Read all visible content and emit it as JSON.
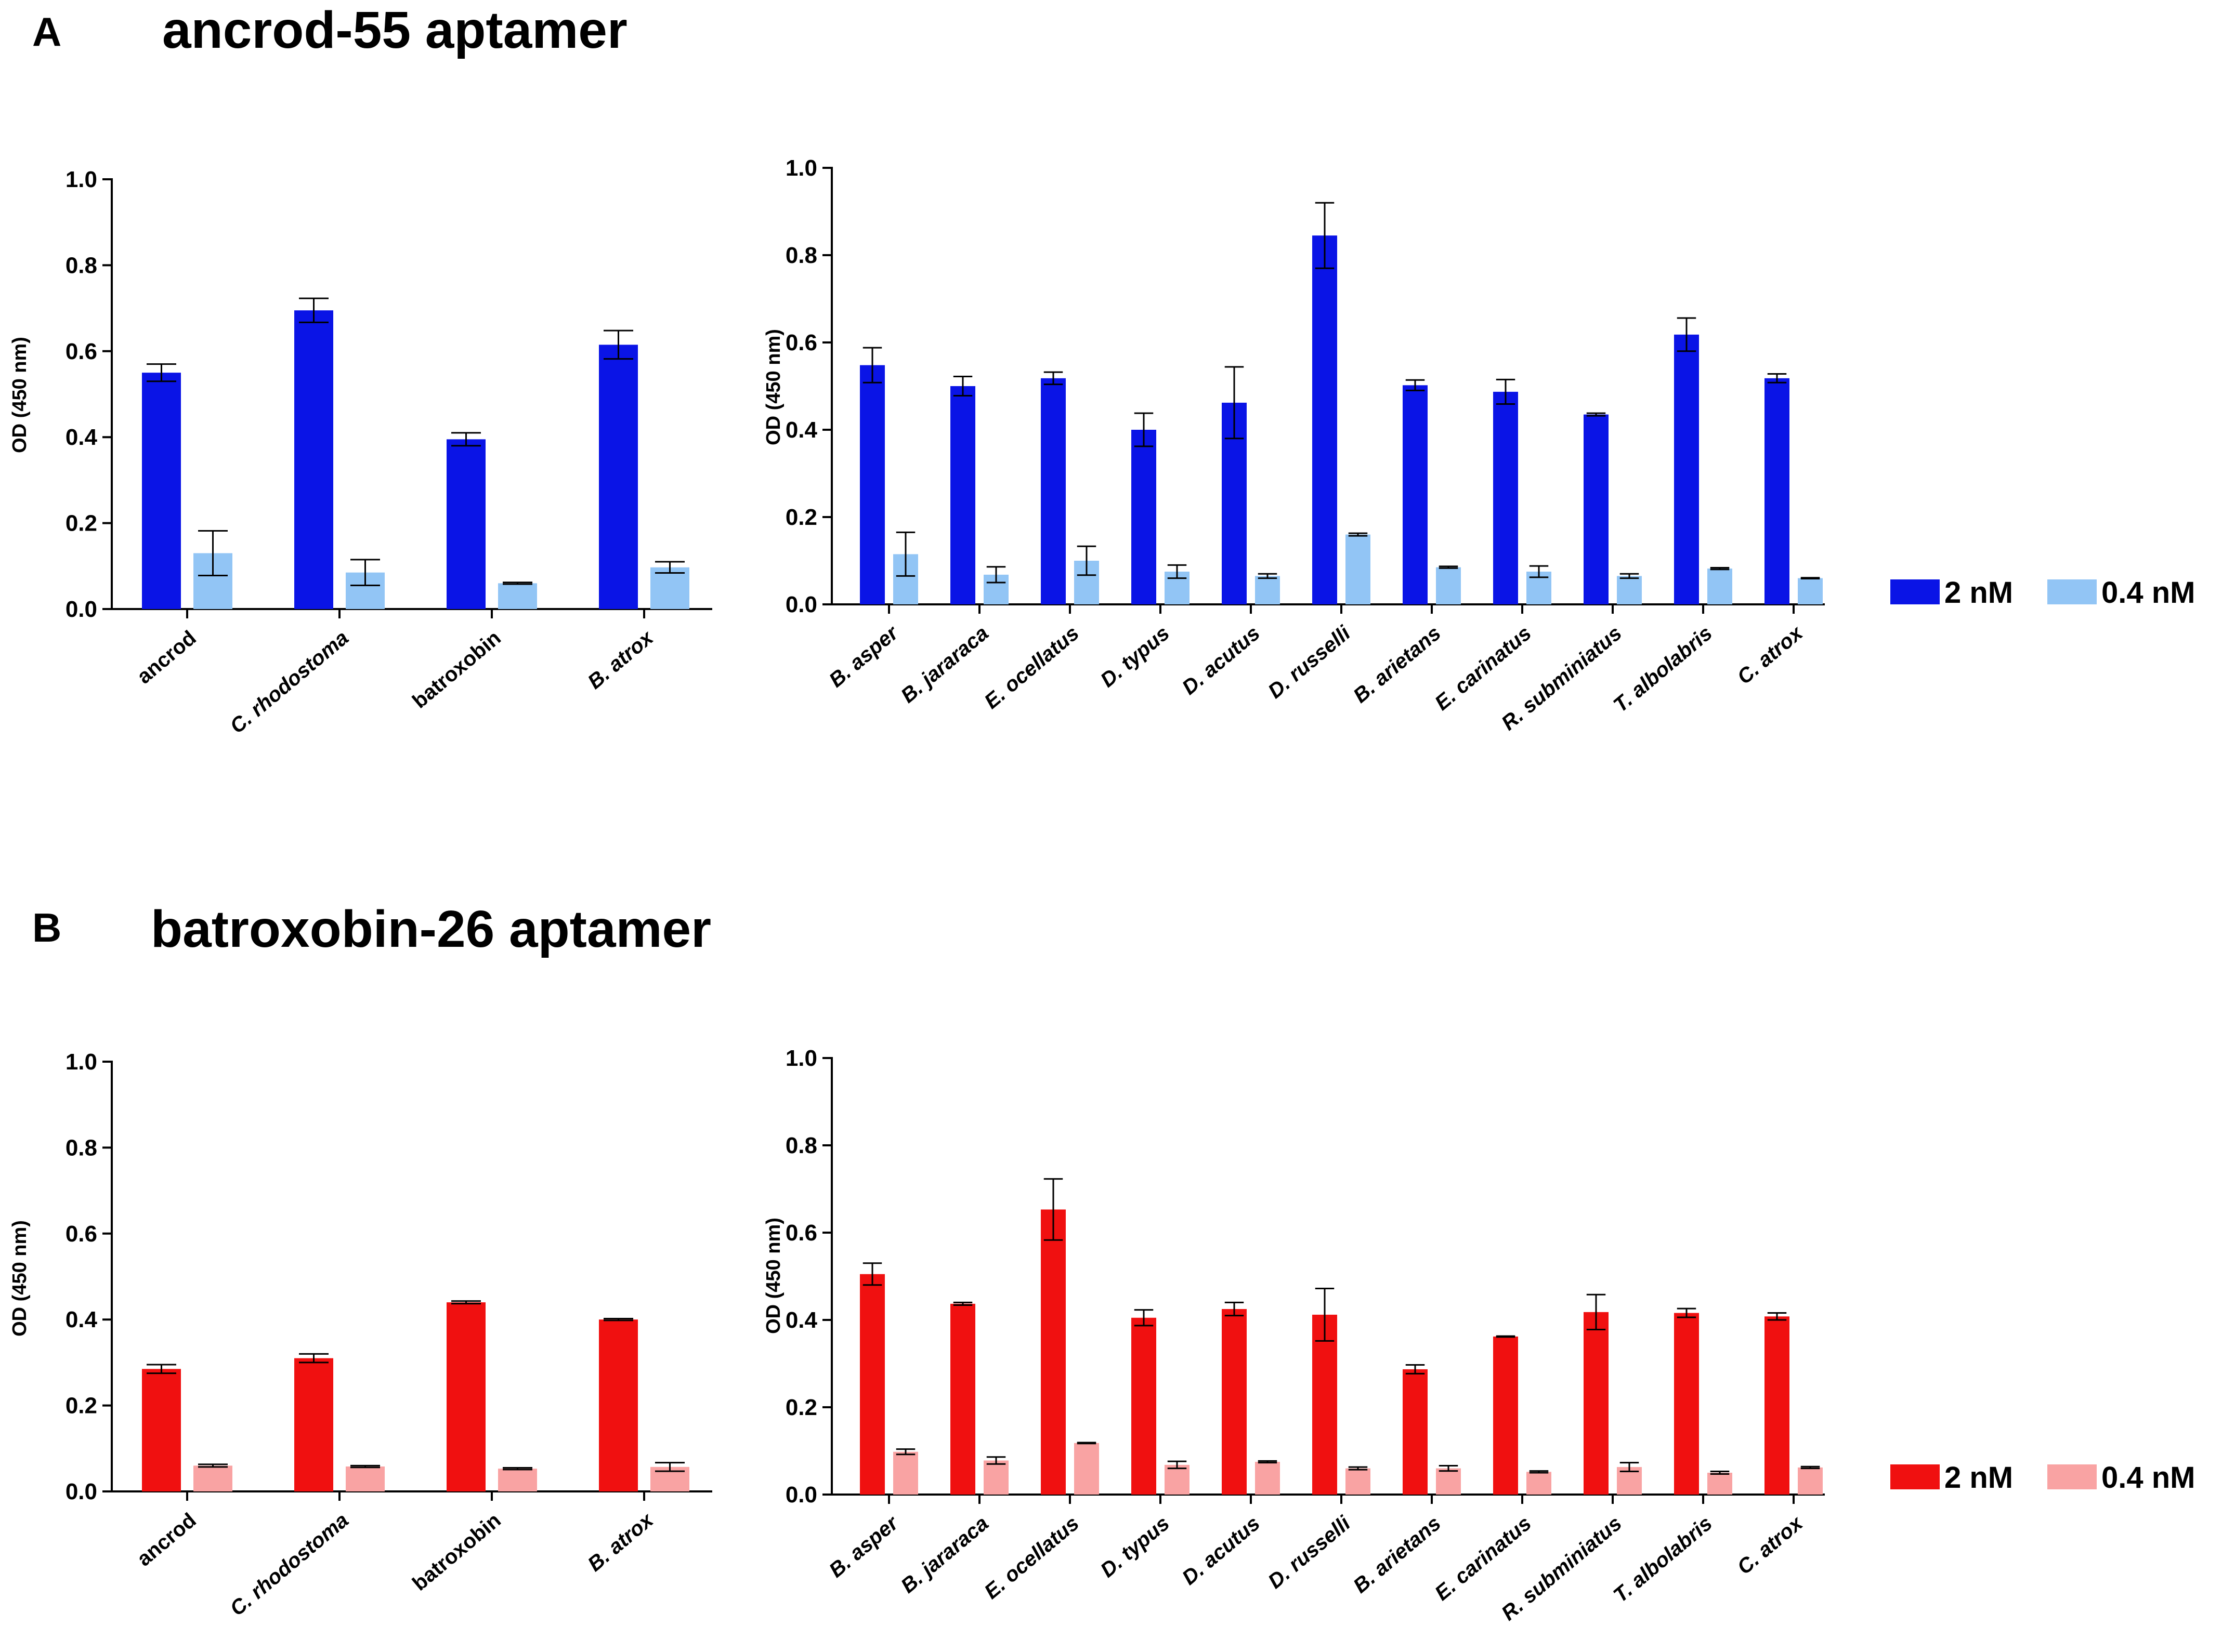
{
  "panels": [
    {
      "letter": "A",
      "title": "ancrod-55 aptamer"
    },
    {
      "letter": "B",
      "title": "batroxobin-26 aptamer"
    }
  ],
  "legends": [
    {
      "items": [
        {
          "label": "2 nM",
          "color": "#0a14e6"
        },
        {
          "label": "0.4 nM",
          "color": "#92c5f5"
        }
      ]
    },
    {
      "items": [
        {
          "label": "2 nM",
          "color": "#f01010"
        },
        {
          "label": "0.4 nM",
          "color": "#f9a3a3"
        }
      ]
    }
  ],
  "chart_data": [
    {
      "type": "bar",
      "panel": "A",
      "ylabel": "OD (450 nm)",
      "ylim": [
        0,
        1.0
      ],
      "yticks": [
        "0.0",
        "0.2",
        "0.4",
        "0.6",
        "0.8",
        "1.0"
      ],
      "categories": [
        "ancrod",
        "C. rhodostoma",
        "batroxobin",
        "B. atrox"
      ],
      "series": [
        {
          "name": "2 nM",
          "color": "#0a14e6",
          "values": [
            0.55,
            0.695,
            0.395,
            0.615
          ],
          "errors": [
            0.02,
            0.028,
            0.015,
            0.033
          ]
        },
        {
          "name": "0.4 nM",
          "color": "#92c5f5",
          "values": [
            0.13,
            0.085,
            0.06,
            0.097
          ],
          "errors": [
            0.052,
            0.03,
            0.002,
            0.013
          ]
        }
      ]
    },
    {
      "type": "bar",
      "panel": "A",
      "ylabel": "OD (450 nm)",
      "ylim": [
        0,
        1.0
      ],
      "yticks": [
        "0.0",
        "0.2",
        "0.4",
        "0.6",
        "0.8",
        "1.0"
      ],
      "categories": [
        "B. asper",
        "B. jararaca",
        "E. ocellatus",
        "D. typus",
        "D. acutus",
        "D. russelli",
        "B. arietans",
        "E. carinatus",
        "R. subminiatus",
        "T. albolabris",
        "C. atrox"
      ],
      "series": [
        {
          "name": "2 nM",
          "color": "#0a14e6",
          "values": [
            0.548,
            0.5,
            0.518,
            0.4,
            0.462,
            0.845,
            0.502,
            0.487,
            0.435,
            0.618,
            0.518
          ],
          "errors": [
            0.04,
            0.022,
            0.014,
            0.038,
            0.082,
            0.075,
            0.012,
            0.028,
            0.003,
            0.038,
            0.01
          ]
        },
        {
          "name": "0.4 nM",
          "color": "#92c5f5",
          "values": [
            0.115,
            0.068,
            0.1,
            0.075,
            0.065,
            0.16,
            0.085,
            0.075,
            0.065,
            0.082,
            0.06
          ],
          "errors": [
            0.05,
            0.018,
            0.033,
            0.015,
            0.005,
            0.003,
            0.002,
            0.013,
            0.005,
            0.002,
            0.001
          ]
        }
      ]
    },
    {
      "type": "bar",
      "panel": "B",
      "ylabel": "OD (450 nm)",
      "ylim": [
        0,
        1.0
      ],
      "yticks": [
        "0.0",
        "0.2",
        "0.4",
        "0.6",
        "0.8",
        "1.0"
      ],
      "categories": [
        "ancrod",
        "C. rhodostoma",
        "batroxobin",
        "B. atrox"
      ],
      "series": [
        {
          "name": "2 nM",
          "color": "#f01010",
          "values": [
            0.285,
            0.31,
            0.44,
            0.4
          ],
          "errors": [
            0.01,
            0.01,
            0.003,
            0.002
          ]
        },
        {
          "name": "0.4 nM",
          "color": "#f9a3a3",
          "values": [
            0.06,
            0.058,
            0.053,
            0.057
          ],
          "errors": [
            0.003,
            0.002,
            0.002,
            0.01
          ]
        }
      ]
    },
    {
      "type": "bar",
      "panel": "B",
      "ylabel": "OD (450 nm)",
      "ylim": [
        0,
        1.0
      ],
      "yticks": [
        "0.0",
        "0.2",
        "0.4",
        "0.6",
        "0.8",
        "1.0"
      ],
      "categories": [
        "B. asper",
        "B. jararaca",
        "E. ocellatus",
        "D. typus",
        "D. acutus",
        "D. russelli",
        "B. arietans",
        "E. carinatus",
        "R. subminiatus",
        "T. albolabris",
        "C. atrox"
      ],
      "series": [
        {
          "name": "2 nM",
          "color": "#f01010",
          "values": [
            0.505,
            0.437,
            0.653,
            0.405,
            0.425,
            0.412,
            0.287,
            0.362,
            0.418,
            0.416,
            0.408
          ],
          "errors": [
            0.025,
            0.003,
            0.07,
            0.018,
            0.015,
            0.06,
            0.01,
            0.001,
            0.04,
            0.01,
            0.008
          ]
        },
        {
          "name": "0.4 nM",
          "color": "#f9a3a3",
          "values": [
            0.098,
            0.078,
            0.118,
            0.068,
            0.075,
            0.06,
            0.06,
            0.052,
            0.063,
            0.05,
            0.062
          ],
          "errors": [
            0.006,
            0.008,
            0.001,
            0.008,
            0.002,
            0.003,
            0.006,
            0.002,
            0.01,
            0.003,
            0.002
          ]
        }
      ]
    }
  ]
}
